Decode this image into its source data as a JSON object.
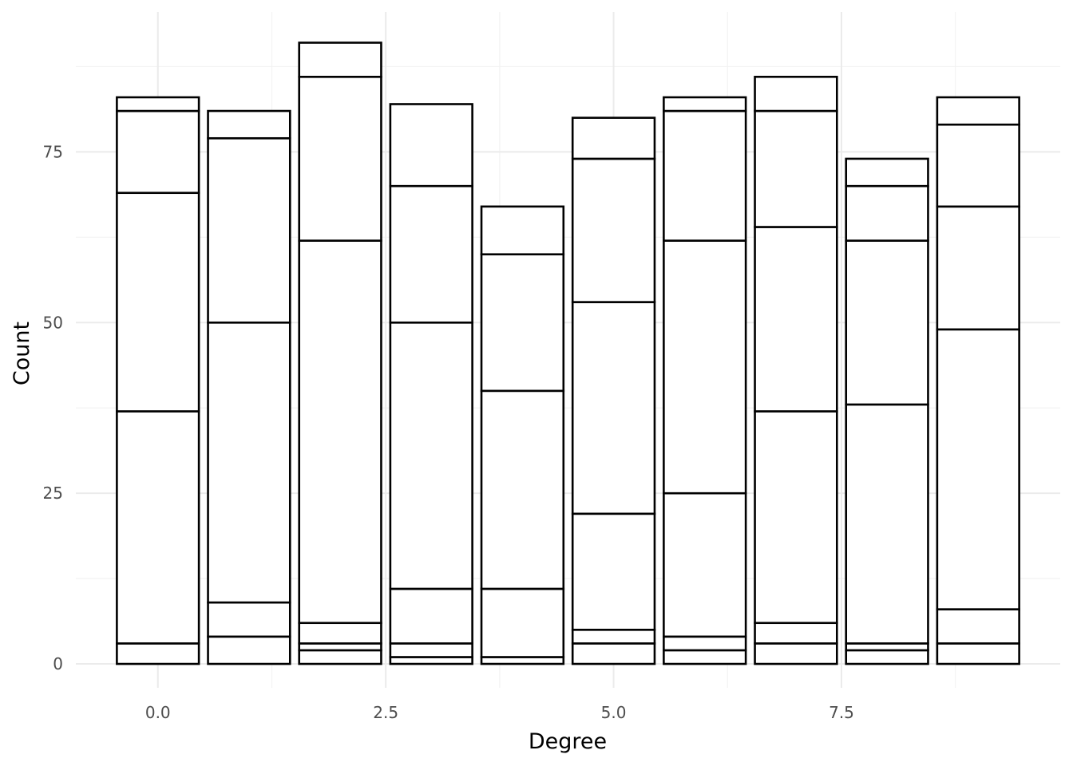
{
  "chart_data": {
    "type": "bar",
    "stacked": true,
    "title": "",
    "xlabel": "Degree",
    "ylabel": "Count",
    "xlim": [
      -0.9,
      9.9
    ],
    "ylim": [
      -3.5,
      95.5
    ],
    "x_ticks": [
      0.0,
      2.5,
      5.0,
      7.5
    ],
    "x_tick_labels": [
      "0.0",
      "2.5",
      "5.0",
      "7.5"
    ],
    "y_ticks": [
      0,
      25,
      50,
      75
    ],
    "y_tick_labels": [
      "0",
      "25",
      "50",
      "75"
    ],
    "x_minor_ticks": [
      1.25,
      3.75,
      6.25,
      8.75
    ],
    "y_minor_ticks": [
      12.5,
      37.5,
      62.5,
      87.5
    ],
    "grid": true,
    "bar_width": 0.9,
    "fill_color": "#ffffff",
    "outline_color": "#000000",
    "categories": [
      0,
      1,
      2,
      3,
      4,
      5,
      6,
      7,
      8,
      9
    ],
    "stack_boundaries": [
      [
        0,
        3,
        37,
        69,
        81,
        83
      ],
      [
        0,
        4,
        9,
        50,
        77,
        81
      ],
      [
        0,
        2,
        3,
        6,
        62,
        86,
        91
      ],
      [
        0,
        1,
        3,
        11,
        50,
        70,
        82
      ],
      [
        0,
        1,
        11,
        40,
        60,
        67
      ],
      [
        0,
        3,
        5,
        22,
        53,
        74,
        80
      ],
      [
        0,
        2,
        4,
        25,
        62,
        81,
        83
      ],
      [
        0,
        3,
        6,
        37,
        64,
        81,
        86
      ],
      [
        0,
        2,
        3,
        38,
        62,
        70,
        74
      ],
      [
        0,
        3,
        8,
        49,
        67,
        79,
        83
      ]
    ],
    "totals": [
      83,
      81,
      91,
      82,
      67,
      80,
      83,
      86,
      74,
      83
    ]
  }
}
